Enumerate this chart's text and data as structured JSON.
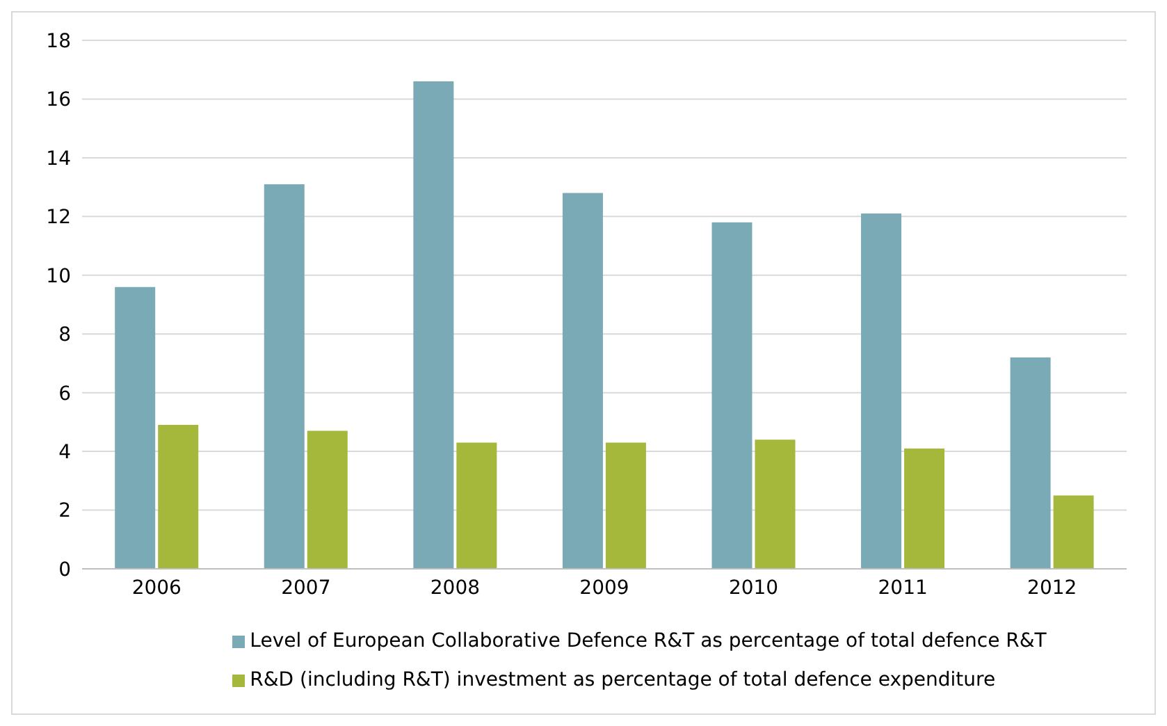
{
  "chart_data": {
    "type": "bar",
    "categories": [
      "2006",
      "2007",
      "2008",
      "2009",
      "2010",
      "2011",
      "2012"
    ],
    "series": [
      {
        "name": "Level of European Collaborative Defence R&T as percentage of total defence R&T",
        "color": "#7aaab6",
        "values": [
          9.6,
          13.1,
          16.6,
          12.8,
          11.8,
          12.1,
          7.2
        ]
      },
      {
        "name": "R&D (including R&T) investment as percentage of total defence expenditure",
        "color": "#a6b83c",
        "values": [
          4.9,
          4.7,
          4.3,
          4.3,
          4.4,
          4.1,
          2.5
        ]
      }
    ],
    "ylim": [
      0,
      18
    ],
    "yticks": [
      0,
      2,
      4,
      6,
      8,
      10,
      12,
      14,
      16,
      18
    ],
    "grid": "y",
    "legend": "bottom"
  }
}
